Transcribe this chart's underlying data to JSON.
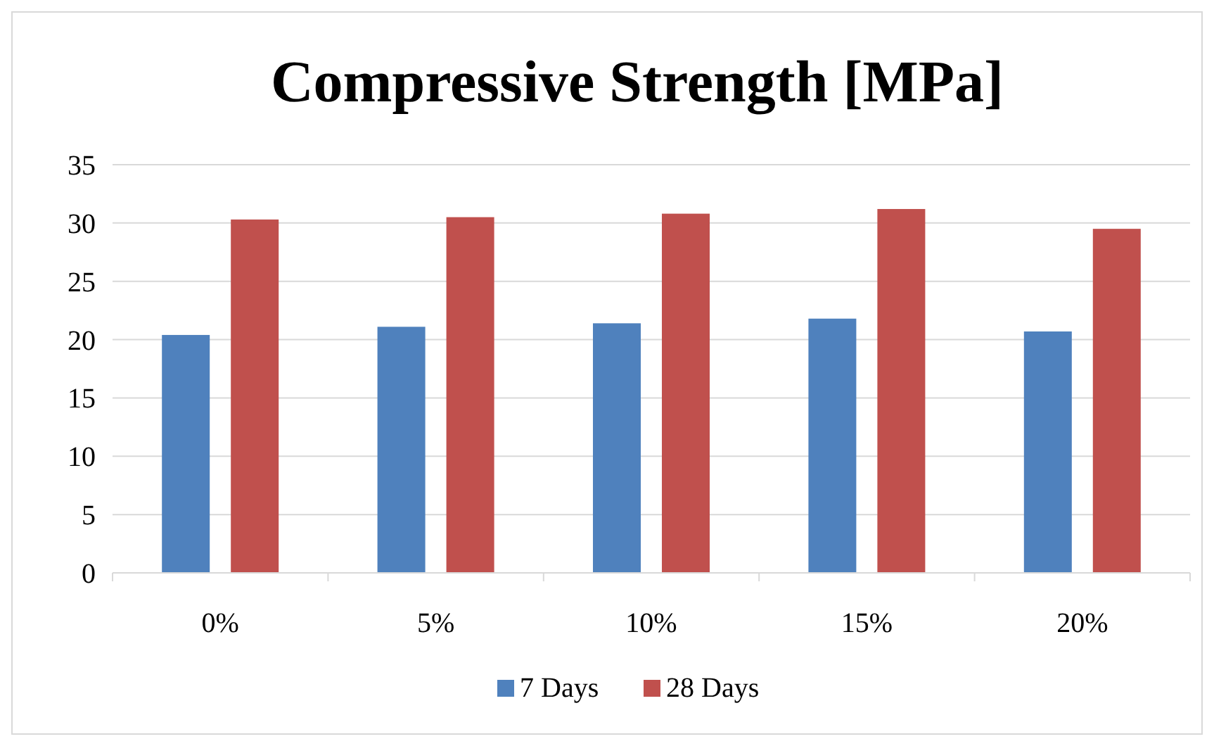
{
  "chart_data": {
    "type": "bar",
    "title": "Compressive Strength [MPa]",
    "categories": [
      "0%",
      "5%",
      "10%",
      "15%",
      "20%"
    ],
    "series": [
      {
        "name": "7 Days",
        "color": "#4f81bd",
        "values": [
          20.4,
          21.1,
          21.4,
          21.8,
          20.7
        ]
      },
      {
        "name": "28 Days",
        "color": "#c0504d",
        "values": [
          30.3,
          30.5,
          30.8,
          31.2,
          29.5
        ]
      }
    ],
    "ylim": [
      0,
      35
    ],
    "yticks": [
      0,
      5,
      10,
      15,
      20,
      25,
      30,
      35
    ],
    "grid": "y",
    "legend": "bottom"
  }
}
